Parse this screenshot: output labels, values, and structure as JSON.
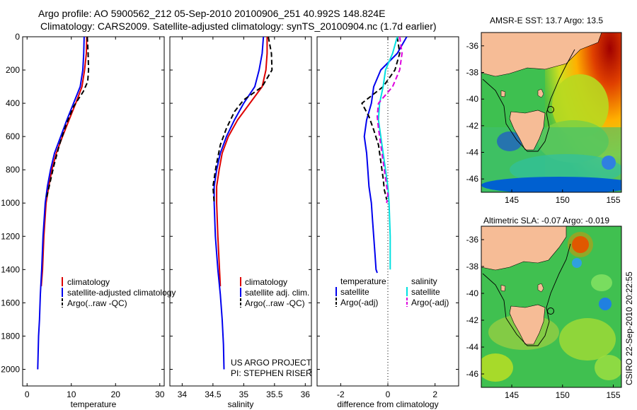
{
  "figure": {
    "title_line1": "Argo profile: AO 5900562_212 05-Sep-2010 20100906_251 40.992S 148.824E",
    "title_line2": "Climatology: CARS2009. Satellite-adjusted climatology: synTS_20100904.nc (1.7d earlier)",
    "credit": "CSIRO 22-Sep-2010 20:22:55"
  },
  "chart_data": [
    {
      "id": "temperature",
      "type": "line",
      "xlabel": "temperature",
      "ylabel": "",
      "xlim": [
        -1,
        31
      ],
      "ylim": [
        2100,
        0
      ],
      "xticks": [
        0,
        10,
        20,
        30
      ],
      "yticks": [
        0,
        200,
        400,
        600,
        800,
        1000,
        1200,
        1400,
        1600,
        1800,
        2000
      ],
      "legend": [
        "climatology",
        "satellite-adjusted climatology",
        "Argo(..raw -QC)"
      ],
      "series": [
        {
          "name": "climatology",
          "color": "#dd0000",
          "dash": "",
          "x": [
            13.5,
            13.4,
            13.0,
            12.4,
            11.0,
            9.5,
            8.0,
            6.6,
            5.6,
            4.9,
            4.3,
            3.8,
            3.5,
            3.2
          ],
          "y": [
            0,
            100,
            200,
            300,
            400,
            500,
            600,
            700,
            800,
            900,
            1000,
            1200,
            1400,
            1500
          ]
        },
        {
          "name": "satellite-adjusted climatology",
          "color": "#0000ee",
          "dash": "",
          "x": [
            12.9,
            12.8,
            12.6,
            12.0,
            10.5,
            9.0,
            7.6,
            6.2,
            5.3,
            4.6,
            4.1,
            3.6,
            3.3,
            3.0,
            2.8,
            2.6,
            2.5,
            2.4
          ],
          "y": [
            0,
            100,
            200,
            300,
            400,
            500,
            600,
            700,
            800,
            900,
            1000,
            1200,
            1400,
            1550,
            1700,
            1800,
            1900,
            2000
          ]
        },
        {
          "name": "Argo(..raw -QC)",
          "color": "#000000",
          "dash": "7,4",
          "x": [
            13.6,
            13.8,
            13.9,
            13.7,
            12.7,
            10.5,
            8.8,
            7.3,
            6.0,
            5.0,
            4.3
          ],
          "y": [
            0,
            100,
            200,
            270,
            330,
            420,
            530,
            650,
            780,
            900,
            980
          ]
        }
      ]
    },
    {
      "id": "salinity",
      "type": "line",
      "xlabel": "salinity",
      "ylabel": "",
      "xlim": [
        33.8,
        36.1
      ],
      "ylim": [
        2100,
        0
      ],
      "xticks": [
        34,
        34.5,
        35,
        35.5,
        36
      ],
      "legend": [
        "climatology",
        "satellite adj. clim.",
        "Argo(..raw -QC)"
      ],
      "annotations": [
        "US ARGO PROJECT",
        "PI: STEPHEN RISER"
      ],
      "series": [
        {
          "name": "climatology",
          "color": "#dd0000",
          "dash": "",
          "x": [
            35.38,
            35.38,
            35.36,
            35.3,
            35.1,
            34.9,
            34.75,
            34.65,
            34.6,
            34.56,
            34.56,
            34.58,
            34.62
          ],
          "y": [
            0,
            100,
            200,
            300,
            400,
            500,
            600,
            700,
            800,
            900,
            1000,
            1200,
            1500
          ]
        },
        {
          "name": "satellite adj. clim.",
          "color": "#0000ee",
          "dash": "",
          "x": [
            35.32,
            35.3,
            35.25,
            35.18,
            35.0,
            34.85,
            34.72,
            34.62,
            34.56,
            34.52,
            34.52,
            34.54,
            34.58,
            34.62,
            34.65,
            34.67,
            34.68
          ],
          "y": [
            0,
            100,
            200,
            300,
            400,
            500,
            600,
            700,
            800,
            900,
            1000,
            1200,
            1400,
            1550,
            1700,
            1850,
            2000
          ]
        },
        {
          "name": "Argo(..raw -QC)",
          "color": "#000000",
          "dash": "7,4",
          "x": [
            35.4,
            35.45,
            35.46,
            35.3,
            35.0,
            34.85,
            34.72,
            34.62,
            34.55,
            34.5,
            34.52
          ],
          "y": [
            0,
            100,
            200,
            300,
            380,
            450,
            550,
            650,
            780,
            900,
            1000
          ]
        }
      ]
    },
    {
      "id": "difference",
      "type": "line",
      "xlabel": "difference from climatology",
      "ylabel": "",
      "xlim": [
        -3,
        3
      ],
      "ylim": [
        2100,
        0
      ],
      "xticks": [
        -2,
        0,
        2
      ],
      "legend_groups": [
        {
          "title": "temperature",
          "entries": [
            "satellite",
            "Argo(-adj)"
          ]
        },
        {
          "title": "salinity",
          "entries": [
            "satellite",
            "Argo(-adj)"
          ]
        }
      ],
      "series": [
        {
          "name": "temperature satellite",
          "color": "#0000ee",
          "dash": "",
          "x": [
            0.8,
            0.4,
            -0.3,
            -0.6,
            -0.7,
            -0.9,
            -1.0,
            -0.9,
            -0.85,
            -0.8,
            -0.7,
            -0.65,
            -0.6,
            -0.55,
            -0.5,
            -0.45
          ],
          "y": [
            0,
            100,
            200,
            300,
            400,
            500,
            600,
            700,
            800,
            900,
            1000,
            1100,
            1200,
            1300,
            1400,
            1420
          ]
        },
        {
          "name": "temperature Argo(-adj)",
          "color": "#000000",
          "dash": "7,4",
          "x": [
            0.4,
            0.5,
            0.3,
            -0.2,
            -1.1,
            -0.8,
            -0.6,
            -0.4,
            -0.3,
            -0.2,
            -0.15,
            -0.1,
            -0.05
          ],
          "y": [
            0,
            100,
            200,
            300,
            400,
            480,
            560,
            650,
            750,
            850,
            920,
            950,
            980
          ]
        },
        {
          "name": "salinity satellite",
          "color": "#00e0e0",
          "dash": "",
          "x": [
            0.4,
            0.2,
            -0.1,
            -0.2,
            -0.35,
            -0.4,
            -0.3,
            -0.2,
            -0.1,
            0.0,
            0.05,
            0.1,
            0.1,
            0.1
          ],
          "y": [
            0,
            100,
            200,
            300,
            400,
            500,
            600,
            700,
            800,
            900,
            1000,
            1200,
            1300,
            1400
          ]
        },
        {
          "name": "salinity Argo(-adj)",
          "color": "#dd00dd",
          "dash": "7,4",
          "x": [
            0.5,
            0.6,
            0.5,
            0.2,
            -0.4,
            -0.45,
            -0.4,
            -0.3,
            -0.2,
            -0.1,
            0.0,
            -0.05
          ],
          "y": [
            0,
            100,
            200,
            300,
            400,
            480,
            550,
            650,
            750,
            850,
            950,
            1000
          ]
        }
      ]
    }
  ],
  "maps": [
    {
      "id": "sst",
      "title": "AMSR-E SST: 13.7 Argo: 13.5",
      "xticks": [
        "145",
        "150",
        "155"
      ],
      "yticks": [
        "-36",
        "-38",
        "-40",
        "-42",
        "-44",
        "-46"
      ]
    },
    {
      "id": "sla",
      "title": "Altimetric SLA: -0.07 Argo: -0.019",
      "xticks": [
        "145",
        "150",
        "155"
      ],
      "yticks": [
        "-36",
        "-38",
        "-40",
        "-42",
        "-44",
        "-46"
      ]
    }
  ]
}
